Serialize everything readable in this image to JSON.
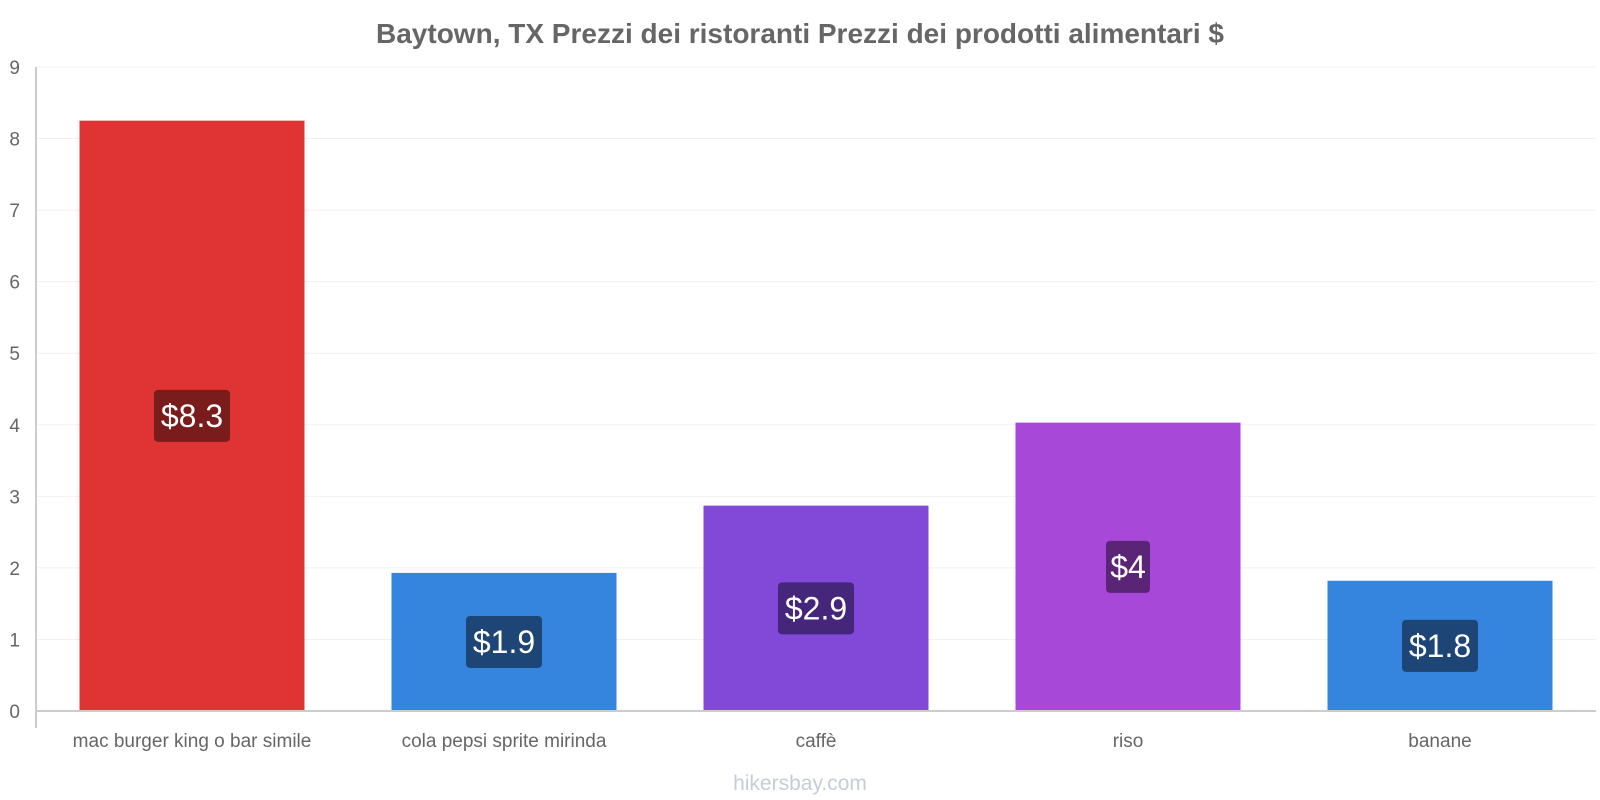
{
  "chart_data": {
    "type": "bar",
    "title": "Baytown, TX Prezzi dei ristoranti Prezzi dei prodotti alimentari $",
    "xlabel": "",
    "ylabel": "",
    "ylim": [
      0,
      9
    ],
    "yticks": [
      0,
      1,
      2,
      3,
      4,
      5,
      6,
      7,
      8,
      9
    ],
    "categories": [
      "mac burger king o bar simile",
      "cola pepsi sprite mirinda",
      "caffè",
      "riso",
      "banane"
    ],
    "values": [
      8.25,
      1.93,
      2.87,
      4.03,
      1.82
    ],
    "value_labels": [
      "$8.3",
      "$1.9",
      "$2.9",
      "$4",
      "$1.8"
    ],
    "bar_colors": [
      "#e03434",
      "#3584de",
      "#8249d9",
      "#a748d9",
      "#3584de"
    ],
    "label_bg_colors": [
      "#7a1c1c",
      "#1d4575",
      "#45267a",
      "#5b2577",
      "#1d4575"
    ],
    "grid": true,
    "legend": "none"
  },
  "watermark": "hikersbay.com"
}
